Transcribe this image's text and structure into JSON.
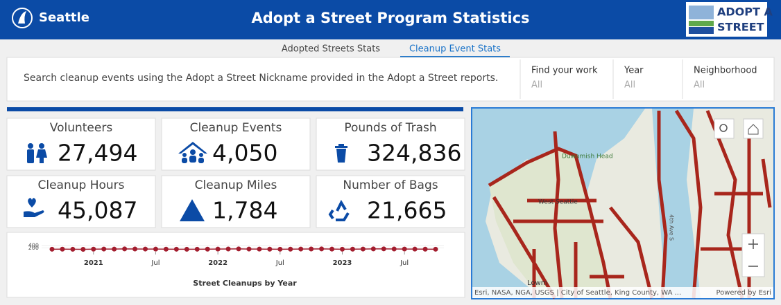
{
  "header": {
    "city": "Seattle",
    "title": "Adopt a Street Program Statistics",
    "logo_line1": "ADOPT A",
    "logo_line2": "STREET"
  },
  "tabs": [
    "Adopted Streets Stats",
    "Cleanup Event Stats"
  ],
  "search": {
    "prompt": "Search cleanup events using the Adopt a Street Nickname provided in the Adopt a Street reports.",
    "filters": [
      {
        "label": "Find your work",
        "value": "All"
      },
      {
        "label": "Year",
        "value": "All"
      },
      {
        "label": "Neighborhood",
        "value": "All"
      }
    ]
  },
  "stats": [
    {
      "label": "Volunteers",
      "value": "27,494"
    },
    {
      "label": "Cleanup Events",
      "value": "4,050"
    },
    {
      "label": "Pounds of Trash",
      "value": "324,836"
    },
    {
      "label": "Cleanup Hours",
      "value": "45,087"
    },
    {
      "label": "Cleanup Miles",
      "value": "1,784"
    },
    {
      "label": "Number of Bags",
      "value": "21,665"
    }
  ],
  "chart_data": {
    "type": "line",
    "title": "Street Cleanups by Year",
    "color": "#a31d2e",
    "categories": [
      null,
      null,
      null,
      null,
      null,
      null,
      null,
      null,
      null,
      null,
      null,
      null,
      null,
      null,
      null,
      null,
      null,
      null,
      null,
      null,
      null,
      null,
      null,
      null,
      null,
      null,
      null,
      null,
      null,
      null,
      null,
      null,
      null,
      null,
      null,
      null,
      null,
      null
    ],
    "values": [
      95,
      100,
      90,
      85,
      100,
      110,
      105,
      120,
      115,
      110,
      105,
      100,
      95,
      90,
      95,
      100,
      105,
      115,
      120,
      110,
      105,
      100,
      95,
      100,
      110,
      115,
      120,
      105,
      95,
      100,
      110,
      120,
      125,
      115,
      110,
      105,
      100,
      95
    ],
    "ylim": [
      0,
      400
    ],
    "yticks": [
      200,
      400
    ],
    "xticks": [
      {
        "value": 4,
        "label": "2021"
      },
      {
        "value": 10,
        "label": "Jul"
      },
      {
        "value": 16,
        "label": "2022"
      },
      {
        "value": 22,
        "label": "Jul"
      },
      {
        "value": 28,
        "label": "2023"
      },
      {
        "value": 34,
        "label": "Jul"
      }
    ]
  },
  "map": {
    "labels": [
      "Duwamish Head",
      "West Seattle",
      "4th Ave S",
      "Lowm"
    ],
    "attribution": "Esri, NASA, NGA, USGS | City of Seattle, King County, WA ...",
    "powered": "Powered by Esri"
  }
}
